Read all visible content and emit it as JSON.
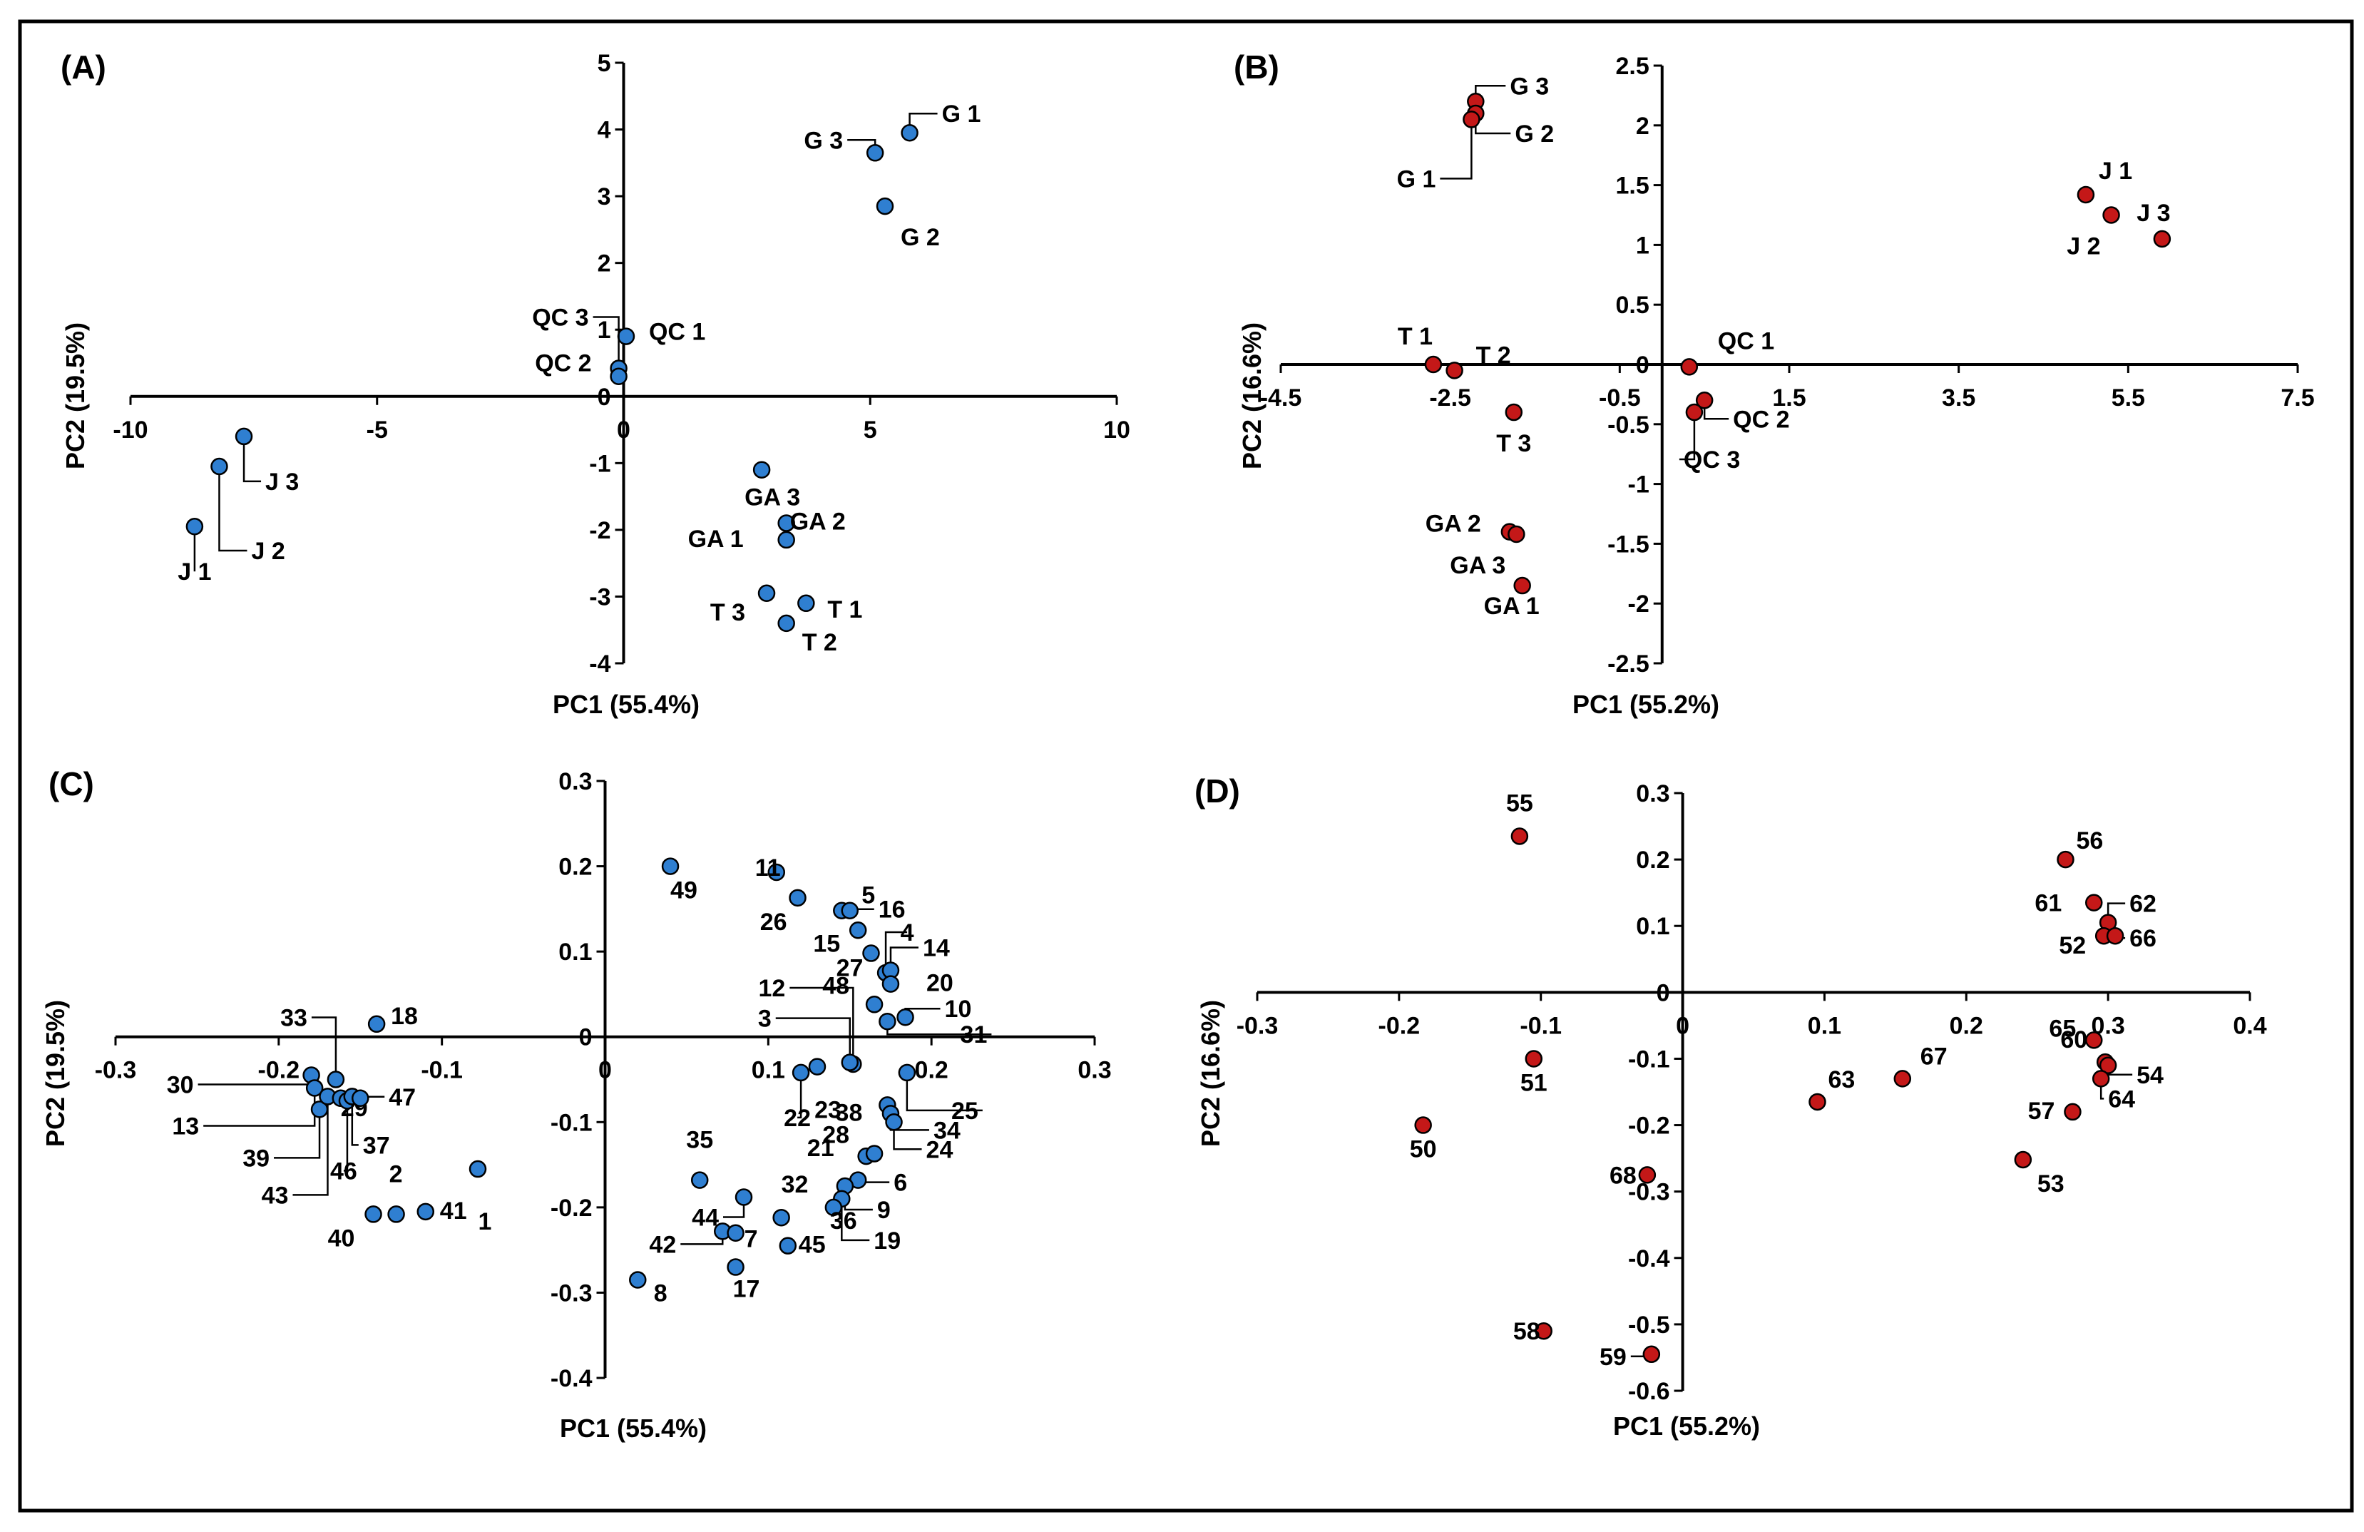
{
  "colors": {
    "blue": "#2f7fd1",
    "red": "#c41818",
    "axis": "#000000",
    "frame": "#000000"
  },
  "chart_data": [
    {
      "panel": "(A)",
      "type": "scatter",
      "xlabel": "PC1 (55.4%)",
      "ylabel": "PC2 (19.5%)",
      "xlim": [
        -10,
        10
      ],
      "ylim": [
        -4,
        5
      ],
      "xticks": [
        "-10",
        "-5",
        "0",
        "5",
        "10"
      ],
      "yticks": [
        "5",
        "4",
        "3",
        "2",
        "1",
        "0",
        "-1",
        "-2",
        "-3",
        "-4"
      ],
      "marker_color": "blue",
      "points": [
        {
          "label": "G 1",
          "x": 5.8,
          "y": 3.95
        },
        {
          "label": "G 3",
          "x": 5.1,
          "y": 3.65
        },
        {
          "label": "G 2",
          "x": 5.3,
          "y": 2.85
        },
        {
          "label": "QC 1",
          "x": 0.05,
          "y": 0.9
        },
        {
          "label": "QC 3",
          "x": -0.1,
          "y": 0.42
        },
        {
          "label": "QC 2",
          "x": -0.1,
          "y": 0.3
        },
        {
          "label": "J 3",
          "x": -7.7,
          "y": -0.6
        },
        {
          "label": "J 2",
          "x": -8.2,
          "y": -1.05
        },
        {
          "label": "J 1",
          "x": -8.7,
          "y": -1.95
        },
        {
          "label": "GA 3",
          "x": 2.8,
          "y": -1.1
        },
        {
          "label": "GA 2",
          "x": 3.3,
          "y": -1.9
        },
        {
          "label": "GA 1",
          "x": 3.3,
          "y": -2.15
        },
        {
          "label": "T 3",
          "x": 2.9,
          "y": -2.95
        },
        {
          "label": "T 1",
          "x": 3.7,
          "y": -3.1
        },
        {
          "label": "T 2",
          "x": 3.3,
          "y": -3.4
        }
      ]
    },
    {
      "panel": "(B)",
      "type": "scatter",
      "xlabel": "PC1 (55.2%)",
      "ylabel": "PC2 (16.6%)",
      "xlim": [
        -4.5,
        7.5
      ],
      "ylim": [
        -2.5,
        2.5
      ],
      "xticks": [
        "-4.5",
        "-2.5",
        "-0.5",
        "1.5",
        "3.5",
        "5.5",
        "7.5"
      ],
      "yticks": [
        "2.5",
        "2",
        "1.5",
        "1",
        "0.5",
        "0",
        "-0.5",
        "-1",
        "-1.5",
        "-2",
        "-2.5"
      ],
      "marker_color": "red",
      "points": [
        {
          "label": "G 3",
          "x": -2.2,
          "y": 2.2
        },
        {
          "label": "G 2",
          "x": -2.2,
          "y": 2.1
        },
        {
          "label": "G 1",
          "x": -2.25,
          "y": 2.05
        },
        {
          "label": "J 1",
          "x": 5.0,
          "y": 1.42
        },
        {
          "label": "J 2",
          "x": 5.3,
          "y": 1.25
        },
        {
          "label": "J 3",
          "x": 5.9,
          "y": 1.05
        },
        {
          "label": "T 1",
          "x": -2.7,
          "y": 0.0
        },
        {
          "label": "T 2",
          "x": -2.45,
          "y": -0.05
        },
        {
          "label": "T 3",
          "x": -1.75,
          "y": -0.4
        },
        {
          "label": "QC 1",
          "x": 0.32,
          "y": -0.02
        },
        {
          "label": "QC 2",
          "x": 0.5,
          "y": -0.3
        },
        {
          "label": "QC 3",
          "x": 0.38,
          "y": -0.4
        },
        {
          "label": "GA 2",
          "x": -1.8,
          "y": -1.4
        },
        {
          "label": "GA 3",
          "x": -1.72,
          "y": -1.42
        },
        {
          "label": "GA 1",
          "x": -1.65,
          "y": -1.85
        }
      ]
    },
    {
      "panel": "(C)",
      "type": "scatter",
      "xlabel": "PC1 (55.4%)",
      "ylabel": "PC2 (19.5%)",
      "xlim": [
        -0.3,
        0.3
      ],
      "ylim": [
        -0.4,
        0.3
      ],
      "xticks": [
        "-0.3",
        "-0.2",
        "-0.1",
        "0",
        "0.1",
        "0.2",
        "0.3"
      ],
      "yticks": [
        "0.3",
        "0.2",
        "0.1",
        "0",
        "-0.1",
        "-0.2",
        "-0.3",
        "-0.4"
      ],
      "marker_color": "blue",
      "points": [
        {
          "label": "49",
          "x": 0.04,
          "y": 0.2
        },
        {
          "label": "11",
          "x": 0.105,
          "y": 0.193
        },
        {
          "label": "26",
          "x": 0.118,
          "y": 0.163
        },
        {
          "label": "5",
          "x": 0.145,
          "y": 0.148
        },
        {
          "label": "16",
          "x": 0.15,
          "y": 0.148
        },
        {
          "label": "15",
          "x": 0.155,
          "y": 0.125
        },
        {
          "label": "27",
          "x": 0.163,
          "y": 0.098
        },
        {
          "label": "4",
          "x": 0.172,
          "y": 0.075
        },
        {
          "label": "14",
          "x": 0.175,
          "y": 0.078
        },
        {
          "label": "20",
          "x": 0.175,
          "y": 0.062
        },
        {
          "label": "48",
          "x": 0.165,
          "y": 0.038
        },
        {
          "label": "10",
          "x": 0.184,
          "y": 0.023
        },
        {
          "label": "31",
          "x": 0.173,
          "y": 0.018
        },
        {
          "label": "12",
          "x": 0.152,
          "y": -0.032
        },
        {
          "label": "3",
          "x": 0.15,
          "y": -0.03
        },
        {
          "label": "18",
          "x": -0.14,
          "y": 0.015
        },
        {
          "label": "33",
          "x": -0.165,
          "y": -0.05
        },
        {
          "label": "30",
          "x": -0.18,
          "y": -0.045
        },
        {
          "label": "13",
          "x": -0.178,
          "y": -0.06
        },
        {
          "label": "39",
          "x": -0.175,
          "y": -0.085
        },
        {
          "label": "43",
          "x": -0.17,
          "y": -0.07
        },
        {
          "label": "29",
          "x": -0.162,
          "y": -0.072
        },
        {
          "label": "46",
          "x": -0.158,
          "y": -0.075
        },
        {
          "label": "37",
          "x": -0.155,
          "y": -0.07
        },
        {
          "label": "47",
          "x": -0.15,
          "y": -0.072
        },
        {
          "label": "2",
          "x": -0.128,
          "y": -0.208
        },
        {
          "label": "40",
          "x": -0.142,
          "y": -0.208
        },
        {
          "label": "41",
          "x": -0.11,
          "y": -0.205
        },
        {
          "label": "1",
          "x": -0.078,
          "y": -0.155
        },
        {
          "label": "22",
          "x": 0.12,
          "y": -0.042
        },
        {
          "label": "23",
          "x": 0.13,
          "y": -0.035
        },
        {
          "label": "38",
          "x": 0.173,
          "y": -0.08
        },
        {
          "label": "34",
          "x": 0.175,
          "y": -0.09
        },
        {
          "label": "24",
          "x": 0.177,
          "y": -0.1
        },
        {
          "label": "25",
          "x": 0.185,
          "y": -0.042
        },
        {
          "label": "21",
          "x": 0.16,
          "y": -0.14
        },
        {
          "label": "28",
          "x": 0.165,
          "y": -0.137
        },
        {
          "label": "6",
          "x": 0.155,
          "y": -0.168
        },
        {
          "label": "9",
          "x": 0.147,
          "y": -0.175
        },
        {
          "label": "19",
          "x": 0.145,
          "y": -0.19
        },
        {
          "label": "36",
          "x": 0.14,
          "y": -0.2
        },
        {
          "label": "35",
          "x": 0.058,
          "y": -0.168
        },
        {
          "label": "44",
          "x": 0.085,
          "y": -0.188
        },
        {
          "label": "32",
          "x": 0.108,
          "y": -0.212
        },
        {
          "label": "42",
          "x": 0.072,
          "y": -0.228
        },
        {
          "label": "7",
          "x": 0.08,
          "y": -0.23
        },
        {
          "label": "45",
          "x": 0.112,
          "y": -0.245
        },
        {
          "label": "17",
          "x": 0.08,
          "y": -0.27
        },
        {
          "label": "8",
          "x": 0.02,
          "y": -0.285
        }
      ]
    },
    {
      "panel": "(D)",
      "type": "scatter",
      "xlabel": "PC1 (55.2%)",
      "ylabel": "PC2 (16.6%)",
      "xlim": [
        -0.3,
        0.4
      ],
      "ylim": [
        -0.6,
        0.3
      ],
      "xticks": [
        "-0.3",
        "-0.2",
        "-0.1",
        "0",
        "0.1",
        "0.2",
        "0.3",
        "0.4"
      ],
      "yticks": [
        "0.3",
        "0.2",
        "0.1",
        "0",
        "-0.1",
        "-0.2",
        "-0.3",
        "-0.4",
        "-0.5",
        "-0.6"
      ],
      "marker_color": "red",
      "points": [
        {
          "label": "55",
          "x": -0.115,
          "y": 0.235
        },
        {
          "label": "56",
          "x": 0.27,
          "y": 0.2
        },
        {
          "label": "61",
          "x": 0.29,
          "y": 0.135
        },
        {
          "label": "62",
          "x": 0.3,
          "y": 0.105
        },
        {
          "label": "52",
          "x": 0.297,
          "y": 0.085
        },
        {
          "label": "66",
          "x": 0.305,
          "y": 0.085
        },
        {
          "label": "51",
          "x": -0.105,
          "y": -0.1
        },
        {
          "label": "65",
          "x": 0.29,
          "y": -0.072
        },
        {
          "label": "60",
          "x": 0.298,
          "y": -0.105
        },
        {
          "label": "54",
          "x": 0.3,
          "y": -0.11
        },
        {
          "label": "64",
          "x": 0.295,
          "y": -0.13
        },
        {
          "label": "57",
          "x": 0.275,
          "y": -0.18
        },
        {
          "label": "63",
          "x": 0.095,
          "y": -0.165
        },
        {
          "label": "67",
          "x": 0.155,
          "y": -0.13
        },
        {
          "label": "50",
          "x": -0.183,
          "y": -0.2
        },
        {
          "label": "68",
          "x": -0.025,
          "y": -0.275
        },
        {
          "label": "53",
          "x": 0.24,
          "y": -0.252
        },
        {
          "label": "58",
          "x": -0.098,
          "y": -0.51
        },
        {
          "label": "59",
          "x": -0.022,
          "y": -0.545
        }
      ]
    }
  ]
}
